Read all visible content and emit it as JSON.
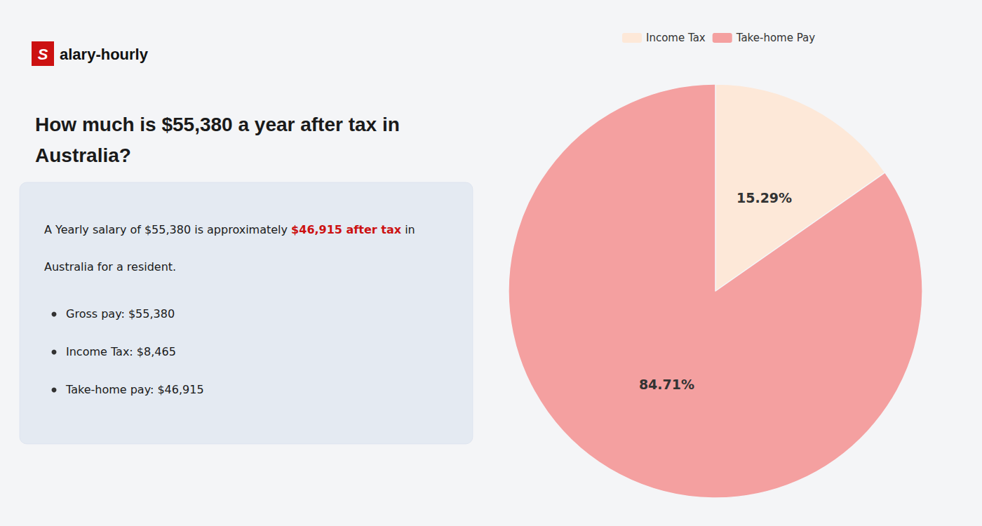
{
  "chart_data": {
    "type": "pie",
    "title": "How much is $55,380 a year after tax in\nAustralia?",
    "categories": [
      "Income Tax",
      "Take-home Pay"
    ],
    "values": [
      15.29,
      84.71
    ],
    "value_labels": [
      "15.29%",
      "84.71%"
    ],
    "colors": [
      "#fde8d8",
      "#f4a0a0"
    ],
    "data_labels": true,
    "legend": "top",
    "annotations": [
      {
        "text": "S",
        "color": "#cc1111"
      },
      {
        "text": "alary-hourly"
      },
      {
        "text": "A Yearly salary of $55,380 is approximately "
      },
      {
        "text": "$46,915 after tax",
        "color": "#cc1111"
      },
      {
        "text": " in"
      },
      {
        "text": "Australia for a resident."
      },
      {
        "text": "Gross pay: $55,380"
      },
      {
        "text": "Income Tax: $8,465"
      },
      {
        "text": "Take-home pay: $46,915"
      }
    ]
  }
}
